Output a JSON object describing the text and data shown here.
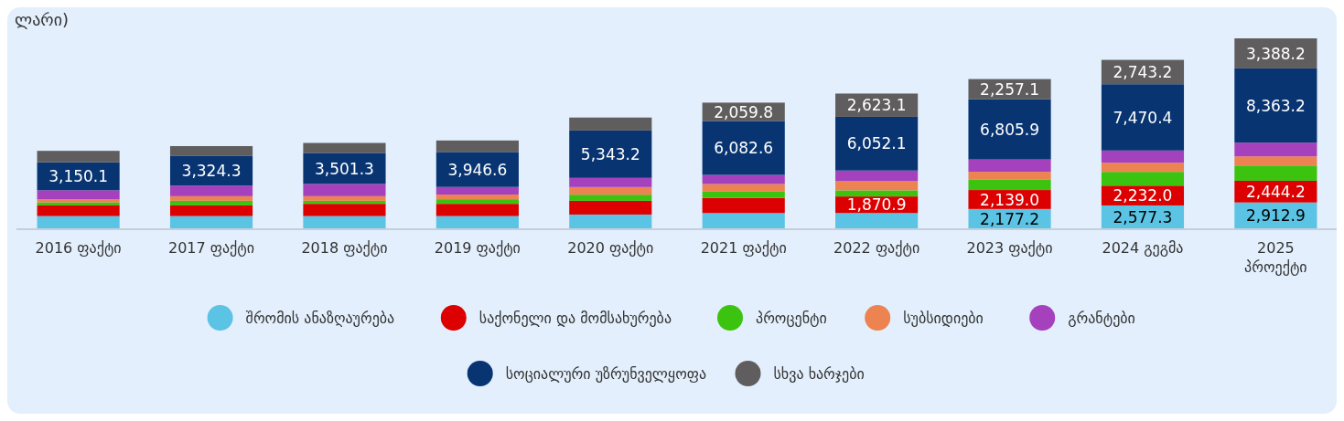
{
  "chart_data": {
    "type": "bar",
    "title": "ლარი)",
    "stacked": true,
    "legend": "bottom",
    "categories": [
      "2016 ფაქტი",
      "2017 ფაქტი",
      "2018 ფაქტი",
      "2019 ფაქტი",
      "2020 ფაქტი",
      "2021 ფაქტი",
      "2022 ფაქტი",
      "2023 ფაქტი",
      "2024 გეგმა",
      "2025 პროექტი"
    ],
    "series": [
      {
        "name": "შრომის ანაზღაურება",
        "color": "#5bc3e4",
        "values": [
          1380,
          1380,
          1380,
          1380,
          1550,
          1720,
          1720,
          2177.2,
          2577.3,
          2912.9
        ],
        "value_labels": [
          null,
          null,
          null,
          null,
          null,
          null,
          null,
          "2,177.2",
          "2,577.3",
          "2,912.9"
        ]
      },
      {
        "name": "საქონელი და მომსახურება",
        "color": "#dc0000",
        "values": [
          1200,
          1200,
          1380,
          1380,
          1550,
          1720,
          1870.9,
          2139.0,
          2232.0,
          2444.2
        ],
        "value_labels": [
          null,
          null,
          null,
          null,
          null,
          null,
          "1,870.9",
          "2,139.0",
          "2,232.0",
          "2,444.2"
        ]
      },
      {
        "name": "პროცენტი",
        "color": "#3cc30f",
        "values": [
          340,
          520,
          340,
          520,
          690,
          690,
          690,
          1200,
          1550,
          1720
        ]
      },
      {
        "name": "სუბსიდიები",
        "color": "#ed8350",
        "values": [
          340,
          520,
          520,
          520,
          860,
          860,
          1030,
          860,
          1030,
          1030
        ]
      },
      {
        "name": "გრანტები",
        "color": "#a541bc",
        "values": [
          1030,
          1200,
          1380,
          860,
          1030,
          1030,
          1200,
          1380,
          1380,
          1550
        ]
      },
      {
        "name": "სოციალური უზრუნველყოფა",
        "color": "#083572",
        "values": [
          3150.1,
          3324.3,
          3501.3,
          3946.6,
          5343.2,
          6082.6,
          6052.1,
          6805.9,
          7470.4,
          8363.2
        ],
        "value_labels": [
          "3,150.1",
          "3,324.3",
          "3,501.3",
          "3,946.6",
          "5,343.2",
          "6,082.6",
          "6,052.1",
          "6,805.9",
          "7,470.4",
          "8,363.2"
        ]
      },
      {
        "name": "სხვა ხარჯები",
        "color": "#5f5d5e",
        "values": [
          1290,
          1120,
          1120,
          1290,
          1460,
          2059.8,
          2623.1,
          2257.1,
          2743.2,
          3388.2
        ],
        "value_labels": [
          null,
          null,
          null,
          null,
          null,
          "2,059.8",
          "2,623.1",
          "2,257.1",
          "2,743.2",
          "3,388.2"
        ]
      }
    ]
  }
}
